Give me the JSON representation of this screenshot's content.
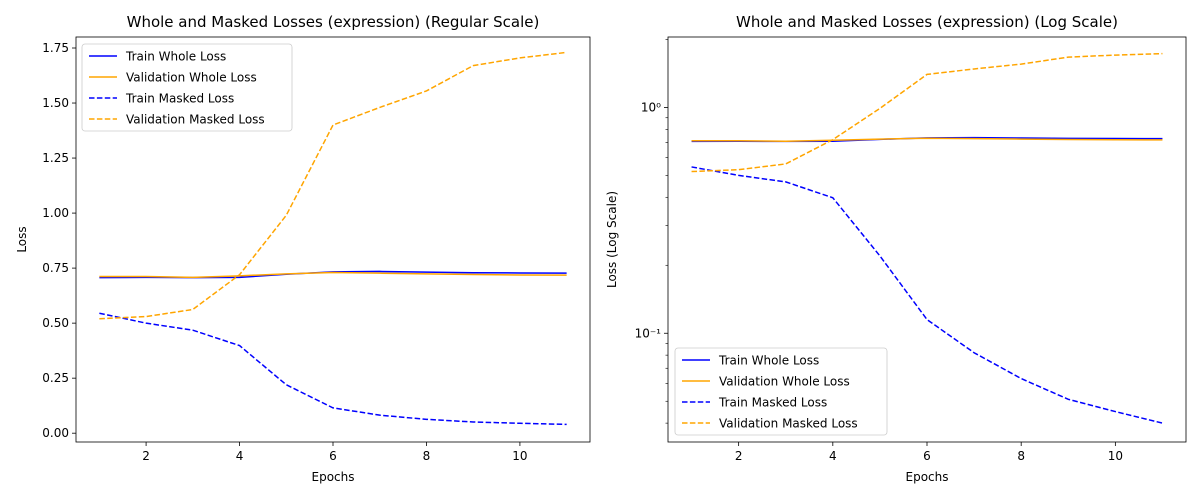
{
  "chart_data": [
    {
      "type": "line",
      "title": "Whole and Masked Losses (expression) (Regular Scale)",
      "xlabel": "Epochs",
      "ylabel": "Loss",
      "xlim": [
        0.5,
        11.5
      ],
      "ylim": [
        -0.04,
        1.8
      ],
      "yscale": "linear",
      "xticks": [
        2,
        4,
        6,
        8,
        10
      ],
      "xtick_labels": [
        "2",
        "4",
        "6",
        "8",
        "10"
      ],
      "yticks": [
        0.0,
        0.25,
        0.5,
        0.75,
        1.0,
        1.25,
        1.5,
        1.75
      ],
      "ytick_labels": [
        "0.00",
        "0.25",
        "0.50",
        "0.75",
        "1.00",
        "1.25",
        "1.50",
        "1.75"
      ],
      "grid": false,
      "legend_position": "upper-left",
      "x": [
        1,
        2,
        3,
        4,
        5,
        6,
        7,
        8,
        9,
        10,
        11
      ],
      "series": [
        {
          "name": "Train Whole Loss",
          "color": "#0000ff",
          "dash": "solid",
          "values": [
            0.707,
            0.708,
            0.707,
            0.708,
            0.722,
            0.733,
            0.735,
            0.732,
            0.729,
            0.728,
            0.727
          ]
        },
        {
          "name": "Validation Whole Loss",
          "color": "#ffa500",
          "dash": "solid",
          "values": [
            0.712,
            0.712,
            0.708,
            0.715,
            0.724,
            0.73,
            0.727,
            0.724,
            0.721,
            0.719,
            0.718
          ]
        },
        {
          "name": "Train Masked Loss",
          "color": "#0000ff",
          "dash": "dashed",
          "values": [
            0.545,
            0.5,
            0.468,
            0.398,
            0.22,
            0.115,
            0.082,
            0.063,
            0.051,
            0.045,
            0.04
          ]
        },
        {
          "name": "Validation Masked Loss",
          "color": "#ffa500",
          "dash": "dashed",
          "values": [
            0.52,
            0.53,
            0.562,
            0.72,
            0.99,
            1.4,
            1.48,
            1.555,
            1.67,
            1.705,
            1.73
          ]
        }
      ]
    },
    {
      "type": "line",
      "title": "Whole and Masked Losses (expression) (Log Scale)",
      "xlabel": "Epochs",
      "ylabel": "Loss (Log Scale)",
      "xlim": [
        0.5,
        11.5
      ],
      "ylim": [
        0.033,
        2.05
      ],
      "yscale": "log",
      "xticks": [
        2,
        4,
        6,
        8,
        10
      ],
      "xtick_labels": [
        "2",
        "4",
        "6",
        "8",
        "10"
      ],
      "yticks": [
        0.1,
        1.0
      ],
      "ytick_labels": [
        "10⁻¹",
        "10⁰"
      ],
      "grid": false,
      "legend_position": "lower-left",
      "x": [
        1,
        2,
        3,
        4,
        5,
        6,
        7,
        8,
        9,
        10,
        11
      ],
      "series": [
        {
          "name": "Train Whole Loss",
          "color": "#0000ff",
          "dash": "solid",
          "values": [
            0.707,
            0.708,
            0.707,
            0.708,
            0.722,
            0.733,
            0.735,
            0.732,
            0.729,
            0.728,
            0.727
          ]
        },
        {
          "name": "Validation Whole Loss",
          "color": "#ffa500",
          "dash": "solid",
          "values": [
            0.712,
            0.712,
            0.708,
            0.715,
            0.724,
            0.73,
            0.727,
            0.724,
            0.721,
            0.719,
            0.718
          ]
        },
        {
          "name": "Train Masked Loss",
          "color": "#0000ff",
          "dash": "dashed",
          "values": [
            0.545,
            0.5,
            0.468,
            0.398,
            0.22,
            0.115,
            0.082,
            0.063,
            0.051,
            0.045,
            0.04
          ]
        },
        {
          "name": "Validation Masked Loss",
          "color": "#ffa500",
          "dash": "dashed",
          "values": [
            0.52,
            0.53,
            0.562,
            0.72,
            0.99,
            1.4,
            1.48,
            1.555,
            1.67,
            1.705,
            1.73
          ]
        }
      ]
    }
  ]
}
